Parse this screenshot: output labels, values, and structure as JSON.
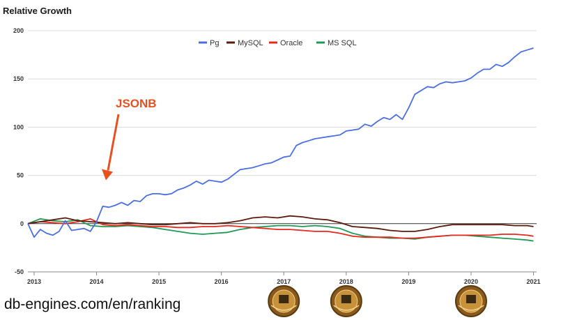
{
  "source_text": "db-engines.com/en/ranking",
  "chart_data": {
    "type": "line",
    "title": "Relative Growth",
    "xlabel": "",
    "ylabel": "",
    "ylim": [
      -50,
      200
    ],
    "yticks": [
      -50,
      0,
      50,
      100,
      150,
      200
    ],
    "xlim": [
      2012.9,
      2021.05
    ],
    "xticks": [
      2013,
      2014,
      2015,
      2016,
      2017,
      2018,
      2019,
      2020,
      2021
    ],
    "grid": true,
    "legend_position": "top",
    "annotation": {
      "text": "JSONB",
      "x": 2014.15,
      "y": 45,
      "color": "#e8501f"
    },
    "series": [
      {
        "name": "Pg",
        "color": "#4a6fe3",
        "x": [
          2012.9,
          2013.0,
          2013.1,
          2013.2,
          2013.3,
          2013.4,
          2013.5,
          2013.6,
          2013.7,
          2013.8,
          2013.9,
          2014.0,
          2014.1,
          2014.2,
          2014.3,
          2014.4,
          2014.5,
          2014.6,
          2014.7,
          2014.8,
          2014.9,
          2015.0,
          2015.1,
          2015.2,
          2015.3,
          2015.4,
          2015.5,
          2015.6,
          2015.7,
          2015.8,
          2015.9,
          2016.0,
          2016.1,
          2016.2,
          2016.3,
          2016.4,
          2016.5,
          2016.6,
          2016.7,
          2016.8,
          2016.9,
          2017.0,
          2017.1,
          2017.2,
          2017.3,
          2017.4,
          2017.5,
          2017.6,
          2017.7,
          2017.8,
          2017.9,
          2018.0,
          2018.1,
          2018.2,
          2018.3,
          2018.4,
          2018.5,
          2018.6,
          2018.7,
          2018.8,
          2018.9,
          2019.0,
          2019.1,
          2019.2,
          2019.3,
          2019.4,
          2019.5,
          2019.6,
          2019.7,
          2019.8,
          2019.9,
          2020.0,
          2020.1,
          2020.2,
          2020.3,
          2020.4,
          2020.5,
          2020.6,
          2020.7,
          2020.8,
          2020.9,
          2021.0
        ],
        "values": [
          0,
          -14,
          -6,
          -10,
          -12,
          -8,
          3,
          -7,
          -6,
          -5,
          -8,
          2,
          18,
          17,
          19,
          22,
          19,
          24,
          23,
          29,
          31,
          31,
          30,
          31,
          35,
          37,
          40,
          44,
          41,
          45,
          44,
          43,
          46,
          51,
          56,
          57,
          58,
          60,
          62,
          63,
          66,
          69,
          70,
          81,
          84,
          86,
          88,
          89,
          90,
          91,
          92,
          96,
          97,
          98,
          103,
          101,
          106,
          110,
          108,
          113,
          108,
          120,
          134,
          138,
          142,
          141,
          145,
          147,
          146,
          147,
          148,
          151,
          156,
          160,
          160,
          165,
          163,
          167,
          173,
          178,
          180,
          182
        ]
      },
      {
        "name": "MySQL",
        "color": "#5c1a0a",
        "x": [
          2012.9,
          2013.1,
          2013.3,
          2013.5,
          2013.7,
          2013.9,
          2014.1,
          2014.3,
          2014.5,
          2014.7,
          2014.9,
          2015.1,
          2015.3,
          2015.5,
          2015.7,
          2015.9,
          2016.1,
          2016.3,
          2016.5,
          2016.7,
          2016.9,
          2017.1,
          2017.3,
          2017.5,
          2017.7,
          2017.9,
          2018.1,
          2018.3,
          2018.5,
          2018.7,
          2018.9,
          2019.1,
          2019.3,
          2019.5,
          2019.7,
          2019.9,
          2020.1,
          2020.3,
          2020.5,
          2020.7,
          2020.9,
          2021.0
        ],
        "values": [
          0,
          2,
          4,
          6,
          3,
          2,
          1,
          0,
          1,
          0,
          -1,
          -1,
          0,
          1,
          0,
          0,
          1,
          3,
          6,
          7,
          6,
          8,
          7,
          5,
          4,
          1,
          -3,
          -4,
          -5,
          -7,
          -8,
          -8,
          -6,
          -3,
          -1,
          -1,
          -1,
          -1,
          -1,
          -2,
          -2,
          -3
        ]
      },
      {
        "name": "Oracle",
        "color": "#e8281e",
        "x": [
          2012.9,
          2013.1,
          2013.3,
          2013.5,
          2013.7,
          2013.9,
          2014.1,
          2014.3,
          2014.5,
          2014.7,
          2014.9,
          2015.1,
          2015.3,
          2015.5,
          2015.7,
          2015.9,
          2016.1,
          2016.3,
          2016.5,
          2016.7,
          2016.9,
          2017.1,
          2017.3,
          2017.5,
          2017.7,
          2017.9,
          2018.1,
          2018.3,
          2018.5,
          2018.7,
          2018.9,
          2019.1,
          2019.3,
          2019.5,
          2019.7,
          2019.9,
          2020.1,
          2020.3,
          2020.5,
          2020.7,
          2020.9,
          2021.0
        ],
        "values": [
          0,
          2,
          1,
          0,
          2,
          5,
          -1,
          -2,
          -1,
          -2,
          -3,
          -3,
          -4,
          -4,
          -3,
          -3,
          -2,
          -3,
          -4,
          -5,
          -6,
          -6,
          -7,
          -8,
          -8,
          -10,
          -13,
          -14,
          -14,
          -14,
          -15,
          -15,
          -14,
          -13,
          -12,
          -12,
          -12,
          -12,
          -11,
          -11,
          -12,
          -13
        ]
      },
      {
        "name": "MS SQL",
        "color": "#1e9a55",
        "x": [
          2012.9,
          2013.1,
          2013.3,
          2013.5,
          2013.7,
          2013.9,
          2014.1,
          2014.3,
          2014.5,
          2014.7,
          2014.9,
          2015.1,
          2015.3,
          2015.5,
          2015.7,
          2015.9,
          2016.1,
          2016.3,
          2016.5,
          2016.7,
          2016.9,
          2017.1,
          2017.3,
          2017.5,
          2017.7,
          2017.9,
          2018.1,
          2018.3,
          2018.5,
          2018.7,
          2018.9,
          2019.1,
          2019.3,
          2019.5,
          2019.7,
          2019.9,
          2020.1,
          2020.3,
          2020.5,
          2020.7,
          2020.9,
          2021.0
        ],
        "values": [
          0,
          5,
          3,
          2,
          4,
          -2,
          -3,
          -3,
          -2,
          -3,
          -4,
          -6,
          -8,
          -10,
          -11,
          -10,
          -9,
          -6,
          -4,
          -3,
          -2,
          -2,
          -3,
          -2,
          -3,
          -5,
          -10,
          -13,
          -14,
          -15,
          -15,
          -16,
          -14,
          -13,
          -12,
          -12,
          -13,
          -14,
          -15,
          -16,
          -17,
          -18
        ]
      }
    ]
  }
}
